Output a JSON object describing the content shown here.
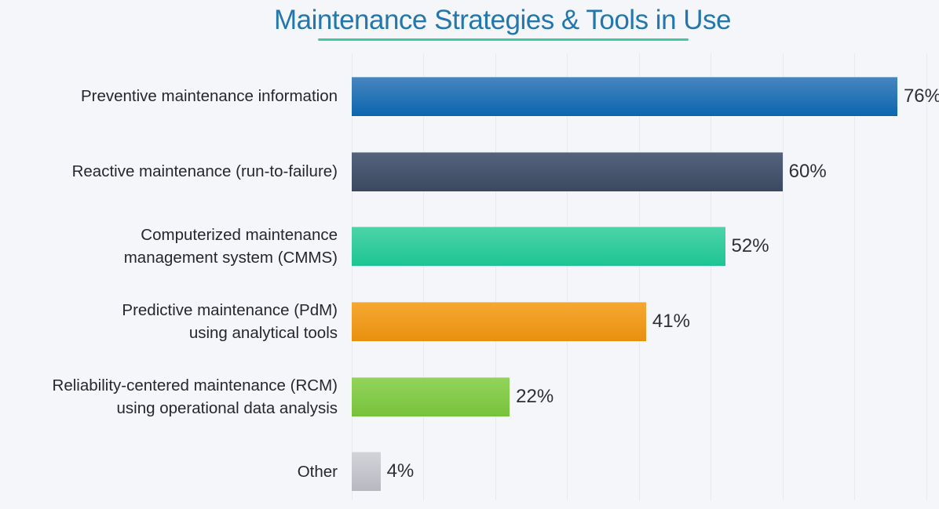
{
  "page": {
    "background_color": "#f5f6fa"
  },
  "header": {
    "title": "Maintenance Strategies & Tools in Use",
    "title_color": "#2377ad",
    "underline_color": "#41c99b"
  },
  "chart_data": {
    "type": "bar",
    "orientation": "horizontal",
    "title": "Maintenance Strategies & Tools in Use",
    "unit": "%",
    "categories": [
      "Preventive maintenance information",
      "Reactive maintenance (run-to-failure)",
      "Computerized maintenance management system (CMMS)",
      "Predictive maintenance (PdM) using analytical tools",
      "Reliability-centered maintenance (RCM) using operational data analysis",
      "Other"
    ],
    "label_lines": [
      [
        "Preventive maintenance information"
      ],
      [
        "Reactive maintenance (run-to-failure)"
      ],
      [
        "Computerized maintenance",
        "management system (CMMS)"
      ],
      [
        "Predictive maintenance (PdM)",
        "using analytical tools"
      ],
      [
        "Reliability-centered maintenance (RCM)",
        "using operational data analysis"
      ],
      [
        "Other"
      ]
    ],
    "values": [
      76,
      60,
      52,
      41,
      22,
      4
    ],
    "value_labels": [
      "76%",
      "60%",
      "52%",
      "41%",
      "22%",
      "4%"
    ],
    "bar_gradients": [
      {
        "top": "#4886bf",
        "bottom": "#0b66af"
      },
      {
        "top": "#55647c",
        "bottom": "#3a4860"
      },
      {
        "top": "#4cd4a8",
        "bottom": "#1ec493"
      },
      {
        "top": "#f6a833",
        "bottom": "#e8900e"
      },
      {
        "top": "#93d45c",
        "bottom": "#77c23c"
      },
      {
        "top": "#d3d3d9",
        "bottom": "#b8b8c0"
      }
    ],
    "xlim": [
      0,
      81.8
    ],
    "gridline_values": [
      0,
      10,
      20,
      30,
      40,
      50,
      60,
      70,
      80
    ],
    "grid_color": "#e8eaf0",
    "legend": false
  }
}
